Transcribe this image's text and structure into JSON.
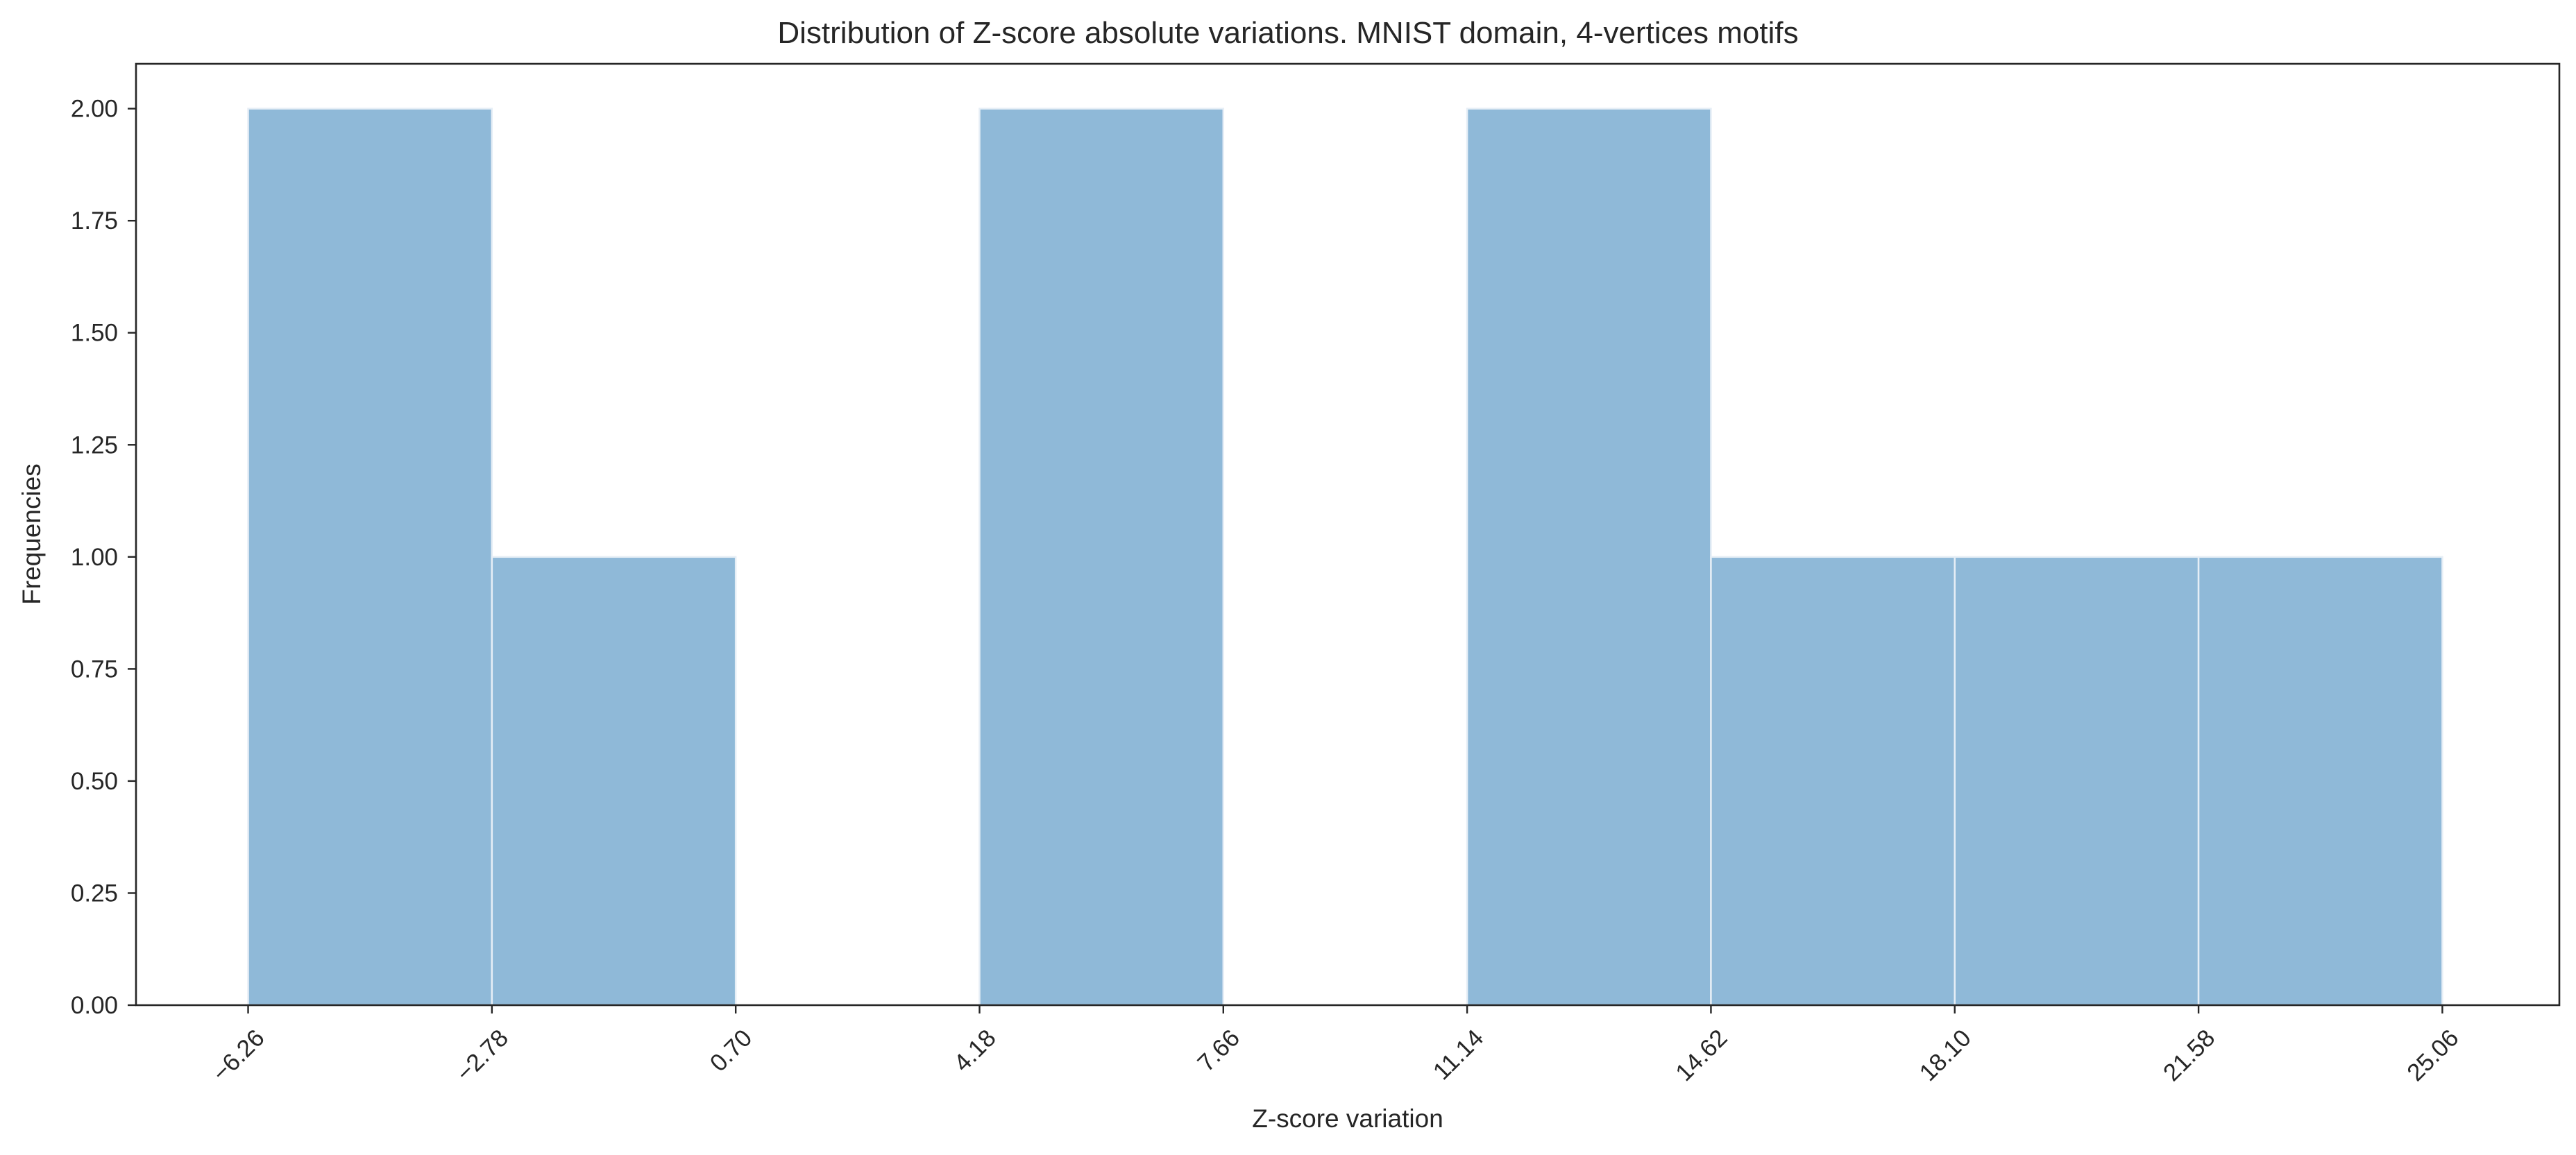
{
  "chart_data": {
    "type": "bar",
    "title": "Distribution of Z-score absolute variations. MNIST domain, 4-vertices motifs",
    "xlabel": "Z-score variation",
    "ylabel": "Frequencies",
    "bin_edges": [
      -6.26,
      -2.78,
      0.7,
      4.18,
      7.66,
      11.14,
      14.62,
      18.1,
      21.58,
      25.06
    ],
    "values": [
      2,
      1,
      0,
      2,
      0,
      2,
      1,
      1,
      1
    ],
    "xlim": [
      -7.86,
      26.73
    ],
    "ylim": [
      0,
      2.1
    ],
    "x_tick_labels": [
      "−6.26",
      "−2.78",
      "0.70",
      "4.18",
      "7.66",
      "11.14",
      "14.62",
      "18.10",
      "21.58",
      "25.06"
    ],
    "y_ticks": [
      0,
      0.25,
      0.5,
      0.75,
      1.0,
      1.25,
      1.5,
      1.75,
      2.0
    ],
    "y_tick_labels": [
      "0.00",
      "0.25",
      "0.50",
      "0.75",
      "1.00",
      "1.25",
      "1.50",
      "1.75",
      "2.00"
    ],
    "grid": false,
    "legend": "none",
    "bar_color": "#8fb9d8",
    "bar_edge_color": "#e6eef6",
    "axis_color": "#262626",
    "text_color": "#262626"
  }
}
